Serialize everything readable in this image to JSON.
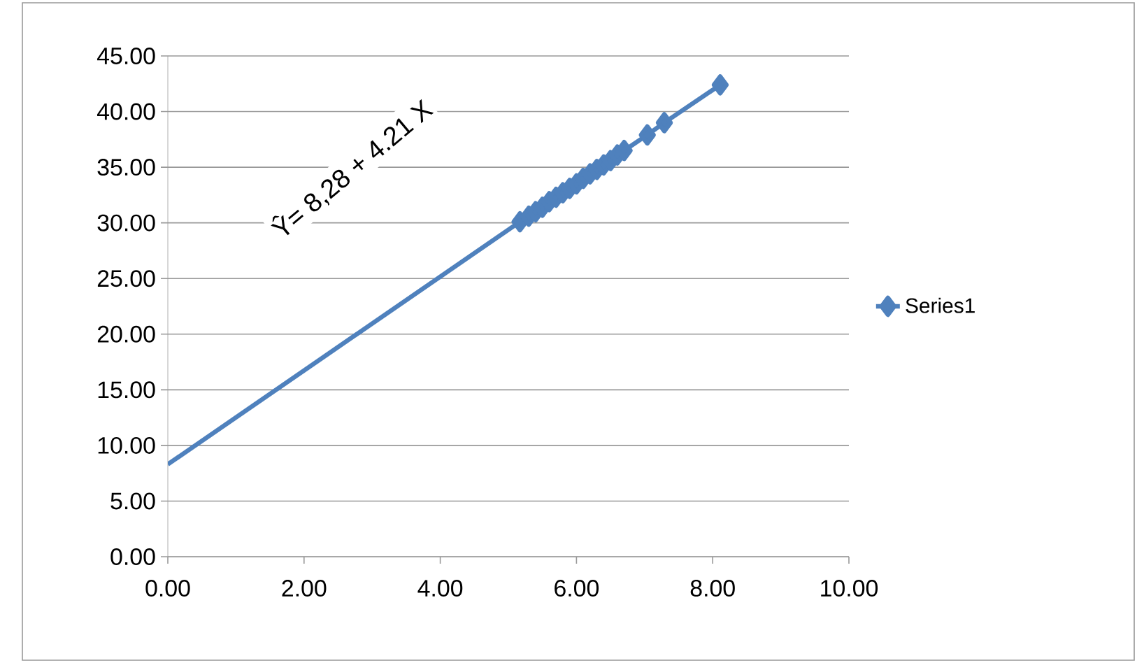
{
  "chart_data": {
    "type": "line",
    "xlim": [
      0,
      10
    ],
    "ylim": [
      0,
      45
    ],
    "xticks": [
      {
        "value": 0,
        "label": "0.00"
      },
      {
        "value": 2,
        "label": "2.00"
      },
      {
        "value": 4,
        "label": "4.00"
      },
      {
        "value": 6,
        "label": "6.00"
      },
      {
        "value": 8,
        "label": "8.00"
      },
      {
        "value": 10,
        "label": "10.00"
      }
    ],
    "yticks": [
      {
        "value": 0,
        "label": "0.00"
      },
      {
        "value": 5,
        "label": "5.00"
      },
      {
        "value": 10,
        "label": "10.00"
      },
      {
        "value": 15,
        "label": "15.00"
      },
      {
        "value": 20,
        "label": "20.00"
      },
      {
        "value": 25,
        "label": "25.00"
      },
      {
        "value": 30,
        "label": "30.00"
      },
      {
        "value": 35,
        "label": "35.00"
      },
      {
        "value": 40,
        "label": "40.00"
      },
      {
        "value": 45,
        "label": "45.00"
      }
    ],
    "grid": "y",
    "legend": "right",
    "marker": "diamond",
    "annotations": [
      "Ŷ= 8,28 + 4.21 X"
    ],
    "series": [
      {
        "name": "Series1",
        "color": "#4f81bd",
        "x": [
          5.17,
          5.3,
          5.4,
          5.5,
          5.6,
          5.7,
          5.8,
          5.9,
          6.0,
          6.1,
          6.2,
          6.3,
          6.4,
          6.5,
          6.6,
          6.7,
          7.04,
          7.29,
          8.11
        ],
        "values": [
          30.1,
          30.6,
          31.0,
          31.4,
          31.9,
          32.3,
          32.7,
          33.1,
          33.5,
          34.0,
          34.4,
          34.8,
          35.2,
          35.6,
          36.1,
          36.5,
          37.9,
          39.0,
          42.4
        ]
      },
      {
        "type": "line",
        "color": "#4f81bd",
        "marker": "none",
        "x": [
          0,
          5.17
        ],
        "values": [
          8.3,
          30.1
        ]
      }
    ]
  }
}
